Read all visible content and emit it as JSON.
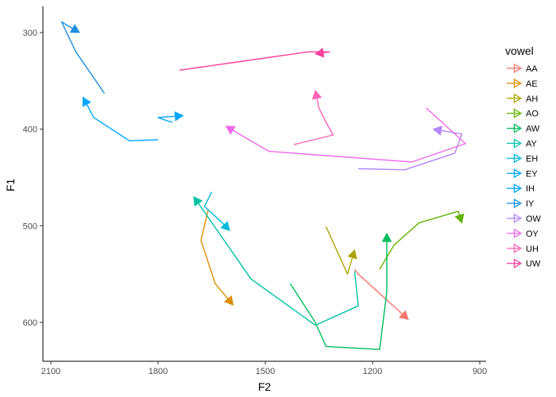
{
  "chart_data": {
    "type": "line",
    "title": "",
    "xlabel": "F2",
    "ylabel": "F1",
    "x_reversed": true,
    "y_reversed": true,
    "xlim": [
      2100,
      900
    ],
    "ylim": [
      300,
      600
    ],
    "x_ticks": [
      2100,
      1800,
      1500,
      1200,
      900
    ],
    "y_ticks": [
      300,
      400,
      500,
      600
    ],
    "grid": false,
    "legend": {
      "title": "vowel",
      "position": "right"
    },
    "series": [
      {
        "name": "AA",
        "color": "#F8766D",
        "points": [
          [
            1250,
            545
          ],
          [
            1240,
            550
          ],
          [
            1100,
            597
          ]
        ]
      },
      {
        "name": "AE",
        "color": "#DB8E00",
        "points": [
          [
            1660,
            484
          ],
          [
            1680,
            515
          ],
          [
            1640,
            560
          ],
          [
            1590,
            582
          ]
        ]
      },
      {
        "name": "AH",
        "color": "#AEA200",
        "points": [
          [
            1330,
            501
          ],
          [
            1270,
            550
          ],
          [
            1250,
            525
          ]
        ]
      },
      {
        "name": "AO",
        "color": "#64B200",
        "points": [
          [
            1180,
            545
          ],
          [
            1140,
            520
          ],
          [
            1070,
            497
          ],
          [
            960,
            485
          ],
          [
            950,
            497
          ]
        ]
      },
      {
        "name": "AW",
        "color": "#00BD5C",
        "points": [
          [
            1430,
            560
          ],
          [
            1360,
            600
          ],
          [
            1330,
            625
          ],
          [
            1180,
            628
          ],
          [
            1160,
            568
          ],
          [
            1160,
            508
          ]
        ]
      },
      {
        "name": "AY",
        "color": "#00C1A7",
        "points": [
          [
            1250,
            547
          ],
          [
            1240,
            583
          ],
          [
            1360,
            603
          ],
          [
            1540,
            555
          ],
          [
            1700,
            470
          ]
        ]
      },
      {
        "name": "EH",
        "color": "#00BADE",
        "points": [
          [
            1650,
            465
          ],
          [
            1670,
            480
          ],
          [
            1620,
            497
          ],
          [
            1600,
            505
          ]
        ]
      },
      {
        "name": "EY",
        "color": "#00A6FF",
        "points": [
          [
            1800,
            411
          ],
          [
            1880,
            412
          ],
          [
            1980,
            388
          ],
          [
            2010,
            367
          ]
        ]
      },
      {
        "name": "IH",
        "color": "#00A6FF",
        "points": [
          [
            1760,
            393
          ],
          [
            1785,
            390
          ],
          [
            1800,
            388
          ],
          [
            1730,
            386
          ]
        ]
      },
      {
        "name": "IY",
        "color": "#1E90E0",
        "points": [
          [
            1950,
            363
          ],
          [
            2030,
            320
          ],
          [
            2070,
            289
          ],
          [
            2020,
            300
          ]
        ]
      },
      {
        "name": "OW",
        "color": "#B385FF",
        "points": [
          [
            1240,
            441
          ],
          [
            1110,
            442
          ],
          [
            970,
            425
          ],
          [
            950,
            405
          ],
          [
            1030,
            400
          ]
        ]
      },
      {
        "name": "OY",
        "color": "#EF67EB",
        "points": [
          [
            1050,
            378
          ],
          [
            940,
            415
          ],
          [
            1090,
            434
          ],
          [
            1490,
            423
          ],
          [
            1610,
            397
          ]
        ]
      },
      {
        "name": "UH",
        "color": "#FF63B6",
        "points": [
          [
            1420,
            416
          ],
          [
            1310,
            406
          ],
          [
            1330,
            393
          ],
          [
            1350,
            378
          ],
          [
            1360,
            360
          ]
        ]
      },
      {
        "name": "UW",
        "color": "#FF3FA0",
        "points": [
          [
            1740,
            339
          ],
          [
            1570,
            330
          ],
          [
            1380,
            320
          ],
          [
            1320,
            320
          ],
          [
            1360,
            322
          ]
        ]
      }
    ]
  }
}
